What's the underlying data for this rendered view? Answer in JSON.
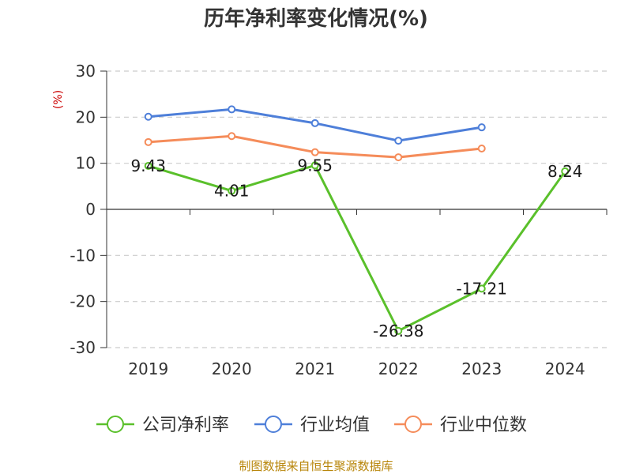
{
  "chart_data": {
    "type": "line",
    "title": "历年净利率变化情况(%)",
    "ylabel": "(%)",
    "xlabel": "",
    "categories": [
      "2019",
      "2020",
      "2021",
      "2022",
      "2023",
      "2024"
    ],
    "ylim": [
      -30,
      30
    ],
    "yticks": [
      30,
      20,
      10,
      0,
      -10,
      -20,
      -30
    ],
    "grid": true,
    "legend_position": "bottom",
    "series": [
      {
        "name": "公司净利率",
        "color": "#5ac02b",
        "values": [
          9.43,
          4.01,
          9.55,
          -26.38,
          -17.21,
          8.24
        ],
        "labels": [
          "9.43",
          "4.01",
          "9.55",
          "-26.38",
          "-17.21",
          "8.24"
        ]
      },
      {
        "name": "行业均值",
        "color": "#4e7fd9",
        "values": [
          20.1,
          21.7,
          18.7,
          14.9,
          17.8,
          null
        ]
      },
      {
        "name": "行业中位数",
        "color": "#f58c5a",
        "values": [
          14.6,
          15.9,
          12.4,
          11.3,
          13.2,
          null
        ]
      }
    ]
  },
  "source": "制图数据来自恒生聚源数据库"
}
